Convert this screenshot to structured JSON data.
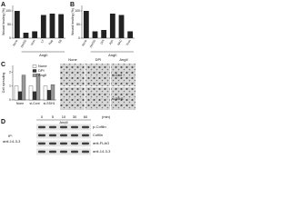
{
  "chart_data": [
    {
      "type": "bar",
      "panel_label": "A",
      "ylabel": "Wound healing (%)",
      "xlabel": "AngII",
      "categories": [
        "None",
        "DMSO",
        "Wort",
        "LY",
        "Rap",
        "SB"
      ],
      "values": [
        100,
        20,
        25,
        85,
        90,
        88
      ],
      "color": "#222222",
      "ylim": [
        0,
        120
      ],
      "yticks": [
        0,
        50,
        100
      ]
    },
    {
      "type": "bar",
      "panel_label": "B",
      "ylabel": "Wound healing (%)",
      "xlabel": "AngII",
      "categories": [
        "None",
        "DMSO",
        "DPI",
        "Apo",
        "NAC",
        "Tiron"
      ],
      "values": [
        100,
        25,
        30,
        90,
        85,
        25
      ],
      "color": "#222222",
      "ylim": [
        0,
        120
      ],
      "yticks": [
        0,
        50,
        100
      ]
    },
    {
      "type": "bar",
      "panel_label": "C",
      "ylabel": "Cell spreading",
      "categories": [
        "None",
        "si-Cont",
        "si-SSH1"
      ],
      "series": [
        {
          "name": "None",
          "color": "#ffffff",
          "values": [
            1.0,
            1.0,
            1.0
          ]
        },
        {
          "name": "DPI",
          "color": "#333333",
          "values": [
            0.6,
            0.6,
            0.7
          ]
        },
        {
          "name": "AngII",
          "color": "#999999",
          "values": [
            1.8,
            1.9,
            1.1
          ]
        }
      ],
      "ylim": [
        0,
        2.5
      ],
      "yticks": [
        0,
        1,
        2
      ]
    }
  ],
  "images": {
    "columns": [
      "None",
      "DPI",
      "AngII"
    ],
    "rows": [
      "si-Cont",
      "si-SSH1"
    ]
  },
  "blot": {
    "panel_label": "D",
    "treatment": "AngII",
    "times": [
      0,
      5,
      10,
      30,
      60
    ],
    "time_unit": "(min)",
    "ip_label": "IP:",
    "ip_antibody": "anti-14-3-3",
    "bands": [
      "p-Cofilin",
      "Cofilin",
      "anti-FLAG",
      "anti-14-3-3"
    ]
  }
}
